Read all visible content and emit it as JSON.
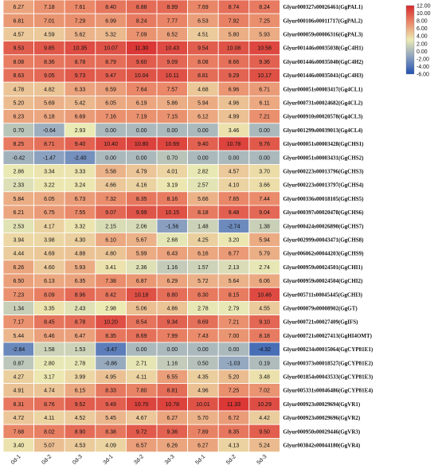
{
  "chart_data": {
    "type": "heatmap",
    "title": "",
    "xlabel": "",
    "ylabel": "",
    "columns": [
      "0d-1",
      "0d-2",
      "0d-3",
      "3d-1",
      "3d-2",
      "3d-3",
      "5d-1",
      "5d-2",
      "5d-3"
    ],
    "rows": [
      "Glyur000327s00026461(GgPAL1)",
      "Glyur000106s00011717(GgPAL2)",
      "Glyur000059s00006316(GgPAL3)",
      "Glyur001446s00035038(GgC4H1)",
      "Glyur001446s00035040(GgC4H2)",
      "Glyur001446s00035041(GgC4H3)",
      "Glyur000051s00003417(Gg4CL1)",
      "Glyur000731s00024682(Gg4CL2)",
      "Glyur000910s00020578(Gg4CL3)",
      "Glyur001299s00039013(Gg4CL4)",
      "Glyur000051s00003428(GgCHS1)",
      "Glyur000051s00003431(GgCHS2)",
      "Glyur000223s00013796(GgCHS3)",
      "Glyur000223s00013797(GgCHS4)",
      "Glyur000336s00018105(GgCHS5)",
      "Glyur000397s00020478(GgCHS6)",
      "Glyur000424s00026890(GgCHS7)",
      "Glyur002999s00043471(GgCHS8)",
      "Glyur006062s00044203(GgCHS9)",
      "Glyur000959s00024501(GgCHI1)",
      "Glyur000959s00024504(GgCHI2)",
      "Glyur005711s00045445(GgCHI3)",
      "Glyur000079s00008902(GgGT)",
      "Glyur000721s00027409(GgIFS)",
      "Glyur000721s00027413(GgHI4OMT)",
      "Glyur000234s00015064(GgCYP81E1)",
      "Glyur000373s00018527(GgCYP81E2)",
      "Glyur001854s00043533(GgCYP81E3)",
      "Glyur005331s00046486(GgCYP81E4)",
      "Glyur000923s00029694(GgVR1)",
      "Glyur000923s00029696(GgVR2)",
      "Glyur000950s00029446(GgVR3)",
      "Glyur003842s00044180(GgVR4)"
    ],
    "values": [
      [
        6.27,
        7.18,
        7.61,
        8.4,
        8.88,
        8.99,
        7.69,
        8.74,
        8.24
      ],
      [
        6.81,
        7.01,
        7.29,
        6.99,
        8.24,
        7.77,
        6.53,
        7.92,
        7.25
      ],
      [
        4.57,
        4.59,
        5.62,
        5.32,
        7.09,
        6.52,
        4.51,
        5.8,
        5.93
      ],
      [
        9.53,
        9.85,
        10.35,
        10.07,
        11.3,
        10.43,
        9.54,
        10.08,
        10.58
      ],
      [
        8.08,
        8.36,
        8.78,
        8.79,
        9.6,
        9.09,
        8.08,
        8.66,
        9.36
      ],
      [
        8.63,
        9.05,
        9.73,
        9.47,
        10.04,
        10.11,
        8.81,
        9.29,
        10.17
      ],
      [
        4.78,
        4.82,
        6.33,
        6.59,
        7.64,
        7.57,
        4.68,
        6.96,
        6.71
      ],
      [
        5.2,
        5.69,
        5.42,
        6.05,
        6.19,
        5.86,
        5.94,
        4.96,
        6.11
      ],
      [
        6.23,
        6.18,
        6.69,
        7.16,
        7.19,
        7.15,
        6.12,
        4.99,
        7.21
      ],
      [
        0.7,
        -0.64,
        2.93,
        0.0,
        0.0,
        0.0,
        0.0,
        3.46,
        0.0
      ],
      [
        8.25,
        8.71,
        9.4,
        10.4,
        10.8,
        10.69,
        9.4,
        10.78,
        9.76
      ],
      [
        -0.42,
        -1.47,
        -2.4,
        0.0,
        0.0,
        0.7,
        0.0,
        0.0,
        0.0
      ],
      [
        2.86,
        3.34,
        3.33,
        5.58,
        4.79,
        4.01,
        2.82,
        4.57,
        3.7
      ],
      [
        2.33,
        3.22,
        3.24,
        4.66,
        4.16,
        3.19,
        2.57,
        4.1,
        3.66
      ],
      [
        5.84,
        6.05,
        6.73,
        7.32,
        8.35,
        8.16,
        5.66,
        7.65,
        7.44
      ],
      [
        6.21,
        6.75,
        7.55,
        9.07,
        9.99,
        10.15,
        8.18,
        9.48,
        9.04
      ],
      [
        2.53,
        4.17,
        3.32,
        2.15,
        2.06,
        -1.56,
        1.48,
        -2.74,
        1.38
      ],
      [
        3.94,
        3.98,
        4.3,
        6.1,
        5.67,
        2.68,
        4.25,
        3.2,
        5.94
      ],
      [
        4.44,
        4.69,
        4.88,
        4.8,
        5.99,
        6.43,
        6.16,
        6.77,
        5.79
      ],
      [
        6.26,
        4.6,
        5.93,
        3.41,
        2.36,
        1.16,
        1.57,
        2.13,
        2.74
      ],
      [
        6.5,
        6.13,
        6.35,
        7.38,
        6.87,
        6.29,
        5.72,
        5.64,
        6.06
      ],
      [
        7.23,
        8.09,
        8.96,
        8.42,
        10.18,
        8.8,
        8.3,
        8.15,
        10.46
      ],
      [
        1.34,
        3.35,
        2.43,
        2.98,
        5.06,
        4.86,
        2.78,
        2.79,
        4.55
      ],
      [
        7.17,
        8.45,
        8.78,
        10.2,
        8.54,
        9.34,
        8.69,
        7.21,
        9.1
      ],
      [
        5.44,
        6.46,
        6.47,
        8.35,
        8.69,
        7.99,
        7.43,
        7.0,
        8.18
      ],
      [
        -2.84,
        1.58,
        1.53,
        -3.47,
        0.0,
        0.0,
        0.0,
        0.0,
        -4.32
      ],
      [
        0.87,
        2.8,
        2.78,
        -0.86,
        2.71,
        1.16,
        0.5,
        -1.03,
        0.19
      ],
      [
        4.27,
        3.17,
        3.99,
        4.95,
        4.11,
        6.55,
        4.35,
        5.2,
        3.48
      ],
      [
        4.91,
        4.74,
        6.15,
        8.33,
        7.8,
        8.81,
        4.96,
        7.25,
        7.02
      ],
      [
        8.31,
        8.76,
        9.52,
        9.49,
        10.7,
        10.78,
        10.01,
        11.33,
        10.29
      ],
      [
        4.72,
        4.11,
        4.52,
        5.45,
        4.67,
        6.27,
        5.7,
        6.72,
        4.42
      ],
      [
        7.68,
        8.02,
        8.9,
        8.38,
        9.72,
        9.36,
        7.89,
        8.35,
        9.5
      ],
      [
        3.4,
        5.07,
        4.53,
        4.09,
        6.57,
        6.26,
        6.27,
        4.13,
        5.24
      ]
    ],
    "value_labels_shown": true,
    "colorbar": {
      "min": -6.0,
      "max": 12.0,
      "ticks": [
        "12.00",
        "10.00",
        "8.00",
        "6.00",
        "4.00",
        "2.00",
        "0.00",
        "-2.00",
        "-4.00",
        "-6.00"
      ],
      "colors": [
        "#2050b0",
        "#8aa0c0",
        "#ecebb4",
        "#ea8a6a",
        "#d7282c"
      ]
    },
    "legend_position": "top-right",
    "grid": true
  }
}
